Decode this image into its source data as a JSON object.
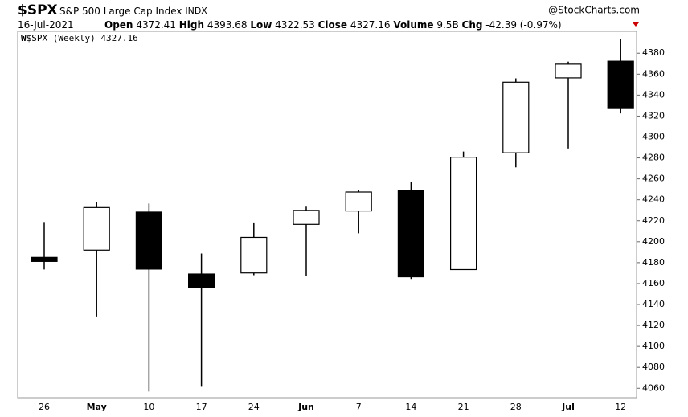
{
  "header": {
    "symbol": "$SPX",
    "name": "S&P 500 Large Cap Index",
    "exchange": "INDX",
    "source": "@StockCharts.com",
    "date": "16-Jul-2021",
    "open_label": "Open",
    "open": "4372.41",
    "high_label": "High",
    "high": "4393.68",
    "low_label": "Low",
    "low": "4322.53",
    "close_label": "Close",
    "close": "4327.16",
    "volume_label": "Volume",
    "volume": "9.5B",
    "chg_label": "Chg",
    "chg": "-42.39 (-0.97%)"
  },
  "chart_data": {
    "type": "candlestick",
    "legend": "$SPX (Weekly) 4327.16",
    "categories": [
      "26",
      "May",
      "10",
      "17",
      "24",
      "Jun",
      "7",
      "14",
      "21",
      "28",
      "Jul",
      "12"
    ],
    "open": [
      4185.03,
      4191.98,
      4228.29,
      4169.14,
      4170.16,
      4216.52,
      4229.34,
      4248.87,
      4173.4,
      4284.9,
      4356.46,
      4372.41
    ],
    "high": [
      4218.78,
      4238.04,
      4236.39,
      4188.72,
      4218.36,
      4233.45,
      4249.74,
      4257.16,
      4286.12,
      4356.0,
      4372.0,
      4393.68
    ],
    "low": [
      4173.49,
      4128.59,
      4056.88,
      4061.41,
      4168.0,
      4167.59,
      4208.0,
      4164.4,
      4173.4,
      4271.0,
      4289.0,
      4322.53
    ],
    "close": [
      4181.17,
      4232.6,
      4173.85,
      4155.86,
      4204.11,
      4229.89,
      4247.44,
      4166.45,
      4280.7,
      4352.34,
      4369.55,
      4327.16
    ],
    "up_color": "#ffffff",
    "down_color": "#000000",
    "ylim": [
      4051,
      4394
    ],
    "yticks": [
      4060,
      4080,
      4100,
      4120,
      4140,
      4160,
      4180,
      4200,
      4220,
      4240,
      4260,
      4280,
      4300,
      4320,
      4340,
      4360,
      4380
    ]
  }
}
